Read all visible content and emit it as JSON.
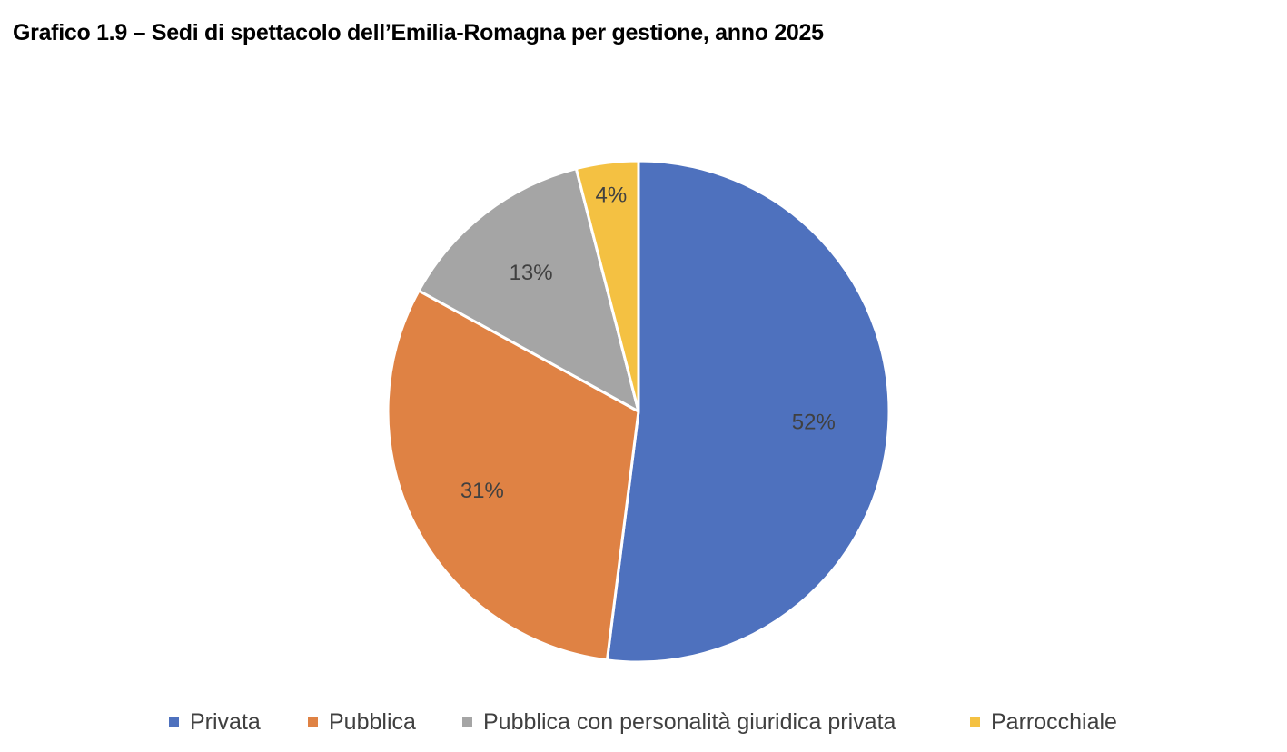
{
  "chart_data": {
    "type": "pie",
    "title": "Grafico 1.9 – Sedi di spettacolo dell’Emilia-Romagna per gestione, anno 2025",
    "categories": [
      "Privata",
      "Pubblica",
      "Pubblica con personalità giuridica privata",
      "Parrocchiale"
    ],
    "values": [
      52,
      31,
      13,
      4
    ],
    "data_labels": [
      "52%",
      "31%",
      "13%",
      "4%"
    ],
    "colors": [
      "#4E71BE",
      "#DF8244",
      "#A5A5A5",
      "#F4C142"
    ],
    "legend_position": "bottom",
    "start_angle": "12 o'clock",
    "direction": "clockwise"
  }
}
